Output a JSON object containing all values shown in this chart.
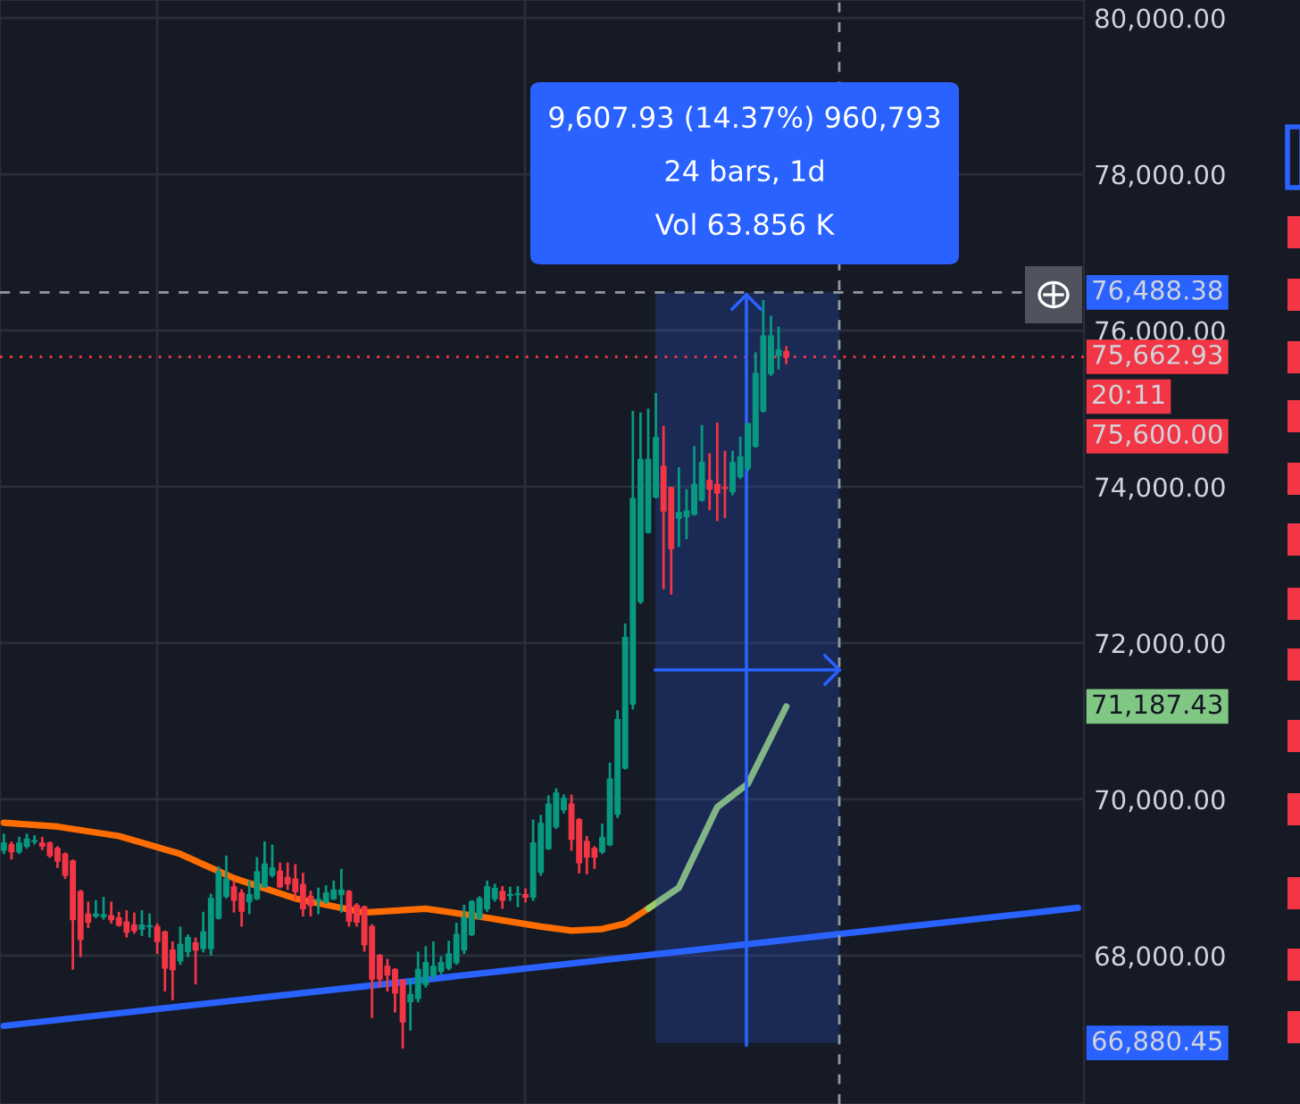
{
  "chart_data": {
    "type": "candlestick",
    "categories": [
      null,
      null,
      null,
      null,
      null,
      null,
      null,
      null,
      null,
      null,
      null,
      null,
      null,
      null,
      null,
      null,
      null,
      null,
      null,
      null,
      null,
      null,
      null,
      null,
      null,
      null,
      null,
      null,
      null,
      null,
      null,
      null,
      null,
      null,
      null,
      null,
      null,
      null,
      null,
      null,
      null,
      null,
      null,
      null,
      null,
      null,
      null,
      null,
      null,
      null,
      null,
      null,
      null,
      null,
      null,
      null,
      null,
      null,
      null,
      null,
      null,
      null,
      null,
      null,
      null,
      null,
      null,
      null,
      null,
      null,
      null,
      null,
      null,
      null,
      null,
      null,
      null,
      null,
      null,
      null,
      null,
      null,
      null,
      null,
      null,
      null,
      null,
      null,
      null,
      null,
      null,
      null,
      null,
      null,
      null,
      null,
      null,
      null,
      null,
      null,
      null,
      null,
      null,
      null,
      null,
      null,
      null,
      null,
      null,
      null,
      null,
      null,
      null,
      null,
      null,
      null,
      null,
      null,
      null,
      null,
      null,
      null,
      null,
      null,
      null,
      null,
      null,
      null,
      null,
      null,
      null,
      null,
      null,
      null,
      null,
      null,
      null,
      null,
      null,
      null,
      null
    ],
    "ohlc": [
      [
        69350,
        69560,
        69300,
        69440
      ],
      [
        69420,
        69460,
        69230,
        69330
      ],
      [
        69330,
        69520,
        69300,
        69440
      ],
      [
        69400,
        69560,
        69370,
        69490
      ],
      [
        69460,
        69540,
        69420,
        69470
      ],
      [
        69440,
        69520,
        69350,
        69400
      ],
      [
        69440,
        69460,
        69250,
        69280
      ],
      [
        69370,
        69400,
        69120,
        69210
      ],
      [
        69300,
        69320,
        68980,
        69030
      ],
      [
        69210,
        69230,
        67820,
        68460
      ],
      [
        68820,
        68840,
        67980,
        68210
      ],
      [
        68530,
        68690,
        68350,
        68430
      ],
      [
        68510,
        68710,
        68480,
        68530
      ],
      [
        68500,
        68750,
        68460,
        68520
      ],
      [
        68510,
        68690,
        68410,
        68460
      ],
      [
        68480,
        68560,
        68370,
        68390
      ],
      [
        68430,
        68580,
        68230,
        68300
      ],
      [
        68390,
        68550,
        68280,
        68320
      ],
      [
        68340,
        68580,
        68250,
        68390
      ],
      [
        68370,
        68540,
        68230,
        68380
      ],
      [
        68370,
        68410,
        68020,
        68180
      ],
      [
        68300,
        68320,
        67540,
        67840
      ],
      [
        68070,
        68180,
        67430,
        67820
      ],
      [
        67930,
        68370,
        67880,
        68140
      ],
      [
        68050,
        68270,
        67980,
        68230
      ],
      [
        68160,
        68230,
        67630,
        68070
      ],
      [
        68090,
        68560,
        68040,
        68300
      ],
      [
        68090,
        68790,
        68000,
        68730
      ],
      [
        68480,
        69140,
        68460,
        69070
      ],
      [
        68760,
        69280,
        68730,
        68980
      ],
      [
        68880,
        68960,
        68550,
        68710
      ],
      [
        68800,
        68850,
        68370,
        68570
      ],
      [
        68690,
        68960,
        68530,
        68780
      ],
      [
        68730,
        69260,
        68710,
        69070
      ],
      [
        68880,
        69460,
        68870,
        69170
      ],
      [
        69030,
        69420,
        69000,
        69120
      ],
      [
        69080,
        69190,
        68860,
        68880
      ],
      [
        69000,
        69190,
        68840,
        68920
      ],
      [
        68980,
        69170,
        68710,
        68820
      ],
      [
        68910,
        69060,
        68500,
        68600
      ],
      [
        68760,
        68830,
        68500,
        68640
      ],
      [
        68700,
        68870,
        68530,
        68720
      ],
      [
        68690,
        68900,
        68660,
        68800
      ],
      [
        68730,
        68960,
        68710,
        68840
      ],
      [
        68780,
        69110,
        68550,
        68840
      ],
      [
        68820,
        68840,
        68370,
        68440
      ],
      [
        68640,
        68670,
        68370,
        68430
      ],
      [
        68620,
        68640,
        68050,
        68140
      ],
      [
        68370,
        68400,
        67200,
        67700
      ],
      [
        68000,
        68020,
        67590,
        67700
      ],
      [
        67860,
        67960,
        67540,
        67750
      ],
      [
        67820,
        67840,
        67270,
        67520
      ],
      [
        67680,
        67700,
        66810,
        67150
      ],
      [
        67410,
        67700,
        67040,
        67500
      ],
      [
        67450,
        68050,
        67400,
        67820
      ],
      [
        67630,
        68120,
        67590,
        67910
      ],
      [
        67750,
        68180,
        67700,
        67860
      ],
      [
        67800,
        67990,
        67760,
        67910
      ],
      [
        67840,
        68190,
        67810,
        68020
      ],
      [
        67910,
        68420,
        67880,
        68270
      ],
      [
        68070,
        68650,
        68020,
        68480
      ],
      [
        68270,
        68710,
        68250,
        68690
      ],
      [
        68480,
        68760,
        68460,
        68730
      ],
      [
        68600,
        68960,
        68560,
        68880
      ],
      [
        68730,
        68920,
        68690,
        68860
      ],
      [
        68820,
        68890,
        68600,
        68710
      ],
      [
        68780,
        68880,
        68700,
        68770
      ],
      [
        68780,
        68890,
        68620,
        68780
      ],
      [
        68780,
        68860,
        68680,
        68750
      ],
      [
        68750,
        69740,
        68700,
        69440
      ],
      [
        69070,
        69800,
        69020,
        69690
      ],
      [
        69370,
        70050,
        69350,
        69940
      ],
      [
        69650,
        70140,
        69620,
        70080
      ],
      [
        69870,
        70060,
        69820,
        70010
      ],
      [
        69940,
        70060,
        69340,
        69490
      ],
      [
        69740,
        69760,
        69050,
        69190
      ],
      [
        69460,
        69530,
        69040,
        69260
      ],
      [
        69370,
        69400,
        69110,
        69260
      ],
      [
        69330,
        69690,
        69300,
        69510
      ],
      [
        69420,
        70470,
        69400,
        70260
      ],
      [
        69810,
        71140,
        69760,
        71020
      ],
      [
        70400,
        72250,
        70380,
        72070
      ],
      [
        71220,
        74970,
        71150,
        73850
      ],
      [
        72530,
        74950,
        72500,
        74350
      ],
      [
        73420,
        75000,
        73400,
        74350
      ],
      [
        73870,
        75200,
        73850,
        74630
      ],
      [
        74260,
        74780,
        72690,
        73690
      ],
      [
        73990,
        74000,
        72620,
        73210
      ],
      [
        73600,
        74250,
        73230,
        73670
      ],
      [
        73620,
        73970,
        73330,
        73690
      ],
      [
        73650,
        74520,
        73630,
        74030
      ],
      [
        73830,
        74790,
        73810,
        74310
      ],
      [
        74080,
        74430,
        73700,
        73970
      ],
      [
        74030,
        74820,
        73560,
        73920
      ],
      [
        73990,
        74460,
        73600,
        73980
      ],
      [
        73940,
        74460,
        73890,
        74310
      ],
      [
        74130,
        74640,
        74100,
        74380
      ],
      [
        74240,
        74810,
        74200,
        74810
      ],
      [
        74520,
        75720,
        74500,
        75450
      ],
      [
        74970,
        76390,
        74950,
        75930
      ],
      [
        75450,
        76190,
        75420,
        75930
      ],
      [
        75680,
        76050,
        75500,
        75750
      ],
      [
        75730,
        75800,
        75570,
        75662.93
      ],
      null,
      null,
      null,
      null,
      null,
      null,
      null,
      null,
      null,
      null,
      null,
      null,
      null,
      null,
      null,
      null,
      null,
      null,
      null,
      null,
      null,
      null,
      null,
      null,
      null,
      null,
      null,
      null,
      null,
      null,
      null,
      null,
      null,
      null,
      null,
      null,
      null,
      null
    ],
    "colors": [
      "#089981",
      "#f23645",
      "#089981",
      "#089981",
      "#089981",
      "#f23645",
      "#f23645",
      "#f23645",
      "#f23645",
      "#f23645",
      "#f23645",
      "#f23645",
      "#089981",
      "#089981",
      "#f23645",
      "#f23645",
      "#f23645",
      "#f23645",
      "#089981",
      "#089981",
      "#f23645",
      "#f23645",
      "#f23645",
      "#089981",
      "#089981",
      "#f23645",
      "#089981",
      "#089981",
      "#089981",
      "#089981",
      "#f23645",
      "#f23645",
      "#089981",
      "#089981",
      "#089981",
      "#089981",
      "#f23645",
      "#f23645",
      "#f23645",
      "#f23645",
      "#f23645",
      "#089981",
      "#089981",
      "#089981",
      "#089981",
      "#f23645",
      "#f23645",
      "#f23645",
      "#f23645",
      "#f23645",
      "#f23645",
      "#f23645",
      "#f23645",
      "#089981",
      "#089981",
      "#089981",
      "#089981",
      "#089981",
      "#089981",
      "#089981",
      "#089981",
      "#089981",
      "#089981",
      "#089981",
      "#089981",
      "#f23645",
      "#089981",
      "#089981",
      "#f23645",
      "#089981",
      "#089981",
      "#089981",
      "#089981",
      "#089981",
      "#f23645",
      "#f23645",
      "#f23645",
      "#f23645",
      "#089981",
      "#089981",
      "#089981",
      "#089981",
      "#089981",
      "#089981",
      "#089981",
      "#089981",
      "#f23645",
      "#f23645",
      "#089981",
      "#089981",
      "#089981",
      "#089981",
      "#f23645",
      "#f23645",
      "#f23645",
      "#089981",
      "#089981",
      "#089981",
      "#089981",
      "#089981",
      "#089981",
      "#089981",
      "#f23645",
      null,
      null,
      null,
      null,
      null,
      null,
      null,
      null,
      null,
      null,
      null,
      null,
      null,
      null,
      null,
      null,
      null,
      null,
      null,
      null,
      null,
      null,
      null,
      null,
      null,
      null,
      null,
      null,
      null,
      null,
      null,
      null,
      null,
      null,
      null,
      null,
      null,
      null
    ],
    "series": [
      {
        "type": "line",
        "color": "#ff6d00",
        "values": [
          69700,
          null,
          null,
          null,
          null,
          null,
          null,
          69650,
          null,
          null,
          null,
          null,
          null,
          null,
          null,
          69530,
          null,
          null,
          null,
          null,
          null,
          null,
          null,
          69300,
          null,
          null,
          null,
          null,
          null,
          null,
          68990,
          null,
          null,
          null,
          null,
          null,
          null,
          null,
          68730,
          null,
          null,
          null,
          null,
          null,
          null,
          null,
          null,
          68550,
          null,
          null,
          null,
          null,
          null,
          null,
          null,
          68600,
          null,
          null,
          null,
          null,
          null,
          null,
          68500,
          null,
          null,
          null,
          null,
          null,
          null,
          null,
          68370,
          null,
          null,
          null,
          68320,
          null,
          null,
          null,
          68340,
          null,
          null,
          68410,
          null,
          null,
          68600,
          null,
          null,
          null,
          null,
          null,
          null,
          null,
          null,
          null,
          null,
          null,
          null,
          null,
          null,
          null,
          null,
          null,
          null,
          null,
          null,
          null,
          null,
          null,
          null,
          null,
          null,
          null,
          null,
          null,
          null,
          null,
          null,
          null,
          null,
          null,
          null,
          null,
          null,
          null,
          null,
          null,
          null,
          null,
          null,
          null,
          null,
          null,
          null,
          null,
          null,
          null,
          null,
          null,
          null,
          null,
          null
        ]
      },
      {
        "type": "line",
        "color": "#9ccc65",
        "values": [
          null,
          null,
          null,
          null,
          null,
          null,
          null,
          null,
          null,
          null,
          null,
          null,
          null,
          null,
          null,
          null,
          null,
          null,
          null,
          null,
          null,
          null,
          null,
          null,
          null,
          null,
          null,
          null,
          null,
          null,
          null,
          null,
          null,
          null,
          null,
          null,
          null,
          null,
          null,
          null,
          null,
          null,
          null,
          null,
          null,
          null,
          null,
          null,
          null,
          null,
          null,
          null,
          null,
          null,
          null,
          null,
          null,
          null,
          null,
          null,
          null,
          null,
          null,
          null,
          null,
          null,
          null,
          null,
          null,
          null,
          null,
          null,
          null,
          null,
          null,
          null,
          null,
          null,
          null,
          null,
          null,
          null,
          null,
          null,
          68600,
          null,
          null,
          null,
          68870,
          null,
          null,
          null,
          null,
          69900,
          null,
          null,
          null,
          70200,
          null,
          null,
          null,
          null,
          71187.43,
          null,
          null,
          null,
          null,
          null,
          null,
          null,
          null,
          null,
          null,
          null,
          null,
          null,
          null,
          null,
          null,
          null,
          null,
          null,
          null,
          null,
          null,
          null,
          null,
          null,
          null,
          null,
          null,
          null,
          null,
          null,
          null,
          null,
          null,
          null,
          null,
          null,
          null
        ]
      },
      {
        "type": "line",
        "color": "#2962ff",
        "values": [
          67100,
          null,
          null,
          null,
          null,
          null,
          null,
          null,
          null,
          null,
          null,
          null,
          null,
          null,
          null,
          null,
          null,
          null,
          null,
          null,
          null,
          null,
          null,
          null,
          null,
          null,
          null,
          null,
          null,
          null,
          null,
          null,
          null,
          null,
          null,
          null,
          null,
          null,
          null,
          null,
          null,
          null,
          null,
          null,
          null,
          null,
          null,
          null,
          null,
          null,
          null,
          null,
          null,
          null,
          null,
          null,
          null,
          null,
          null,
          null,
          null,
          null,
          null,
          null,
          null,
          null,
          null,
          null,
          null,
          null,
          null,
          null,
          null,
          null,
          null,
          null,
          null,
          null,
          null,
          null,
          null,
          null,
          null,
          null,
          null,
          null,
          null,
          null,
          null,
          null,
          null,
          null,
          null,
          null,
          null,
          null,
          null,
          null,
          null,
          null,
          null,
          null,
          null,
          null,
          null,
          null,
          null,
          null,
          null,
          null,
          null,
          null,
          null,
          null,
          null,
          null,
          null,
          null,
          null,
          null,
          null,
          null,
          null,
          null,
          null,
          null,
          null,
          null,
          null,
          null,
          null,
          null,
          null,
          null,
          null,
          null,
          null,
          null,
          null,
          null,
          68610
        ]
      }
    ],
    "ylim": [
      66100,
      80230
    ],
    "yticks": [
      {
        "value": 68000,
        "label": "68,000.00"
      },
      {
        "value": 70000,
        "label": "70,000.00"
      },
      {
        "value": 72000,
        "label": "72,000.00"
      },
      {
        "value": 74000,
        "label": "74,000.00"
      },
      {
        "value": 76000,
        "label": "76,000.00"
      },
      {
        "value": 78000,
        "label": "78,000.00"
      },
      {
        "value": 80000,
        "label": "80,000.00"
      }
    ],
    "tick_labels": "y",
    "grid": true,
    "ref_lines": [
      {
        "axis": "y",
        "value": 76488.38,
        "label": "76,488.38",
        "color": "#9598a1",
        "line_style": "dashed"
      },
      {
        "axis": "y",
        "value": 75662.93,
        "label": "75,662.93",
        "color": "#f23645",
        "line_style": "dotted"
      }
    ],
    "bands": [
      {
        "axis": "y",
        "from": 66880.45,
        "to": 76488.38,
        "color": "#2962ff"
      }
    ],
    "annotations": [
      "9,607.93 (14.37%) 960,793",
      "24 bars, 1d",
      "Vol 63.856 K",
      "20:11",
      "75,600.00",
      "71,187.43",
      "66,880.45"
    ]
  }
}
